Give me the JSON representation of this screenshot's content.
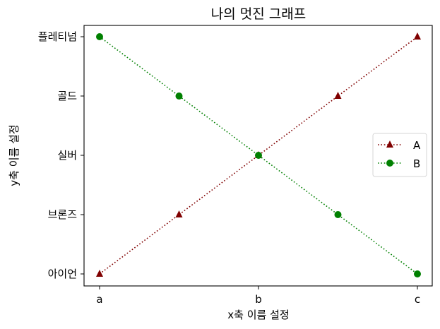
{
  "chart_data": {
    "type": "line",
    "title": "나의 멋진 그래프",
    "xlabel": "x축 이름 설정",
    "ylabel": "y축 이름 설정",
    "x_ticks": [
      {
        "label": "a",
        "value": 0
      },
      {
        "label": "b",
        "value": 1
      },
      {
        "label": "c",
        "value": 2
      }
    ],
    "y_ticks": [
      {
        "label": "아이언",
        "value": 0
      },
      {
        "label": "브론즈",
        "value": 1
      },
      {
        "label": "실버",
        "value": 2
      },
      {
        "label": "골드",
        "value": 3
      },
      {
        "label": "플레티넘",
        "value": 4
      }
    ],
    "x": [
      0,
      0.5,
      1,
      1.5,
      2
    ],
    "series": [
      {
        "name": "A",
        "values": [
          0,
          1,
          2,
          3,
          4
        ],
        "color": "#800000",
        "marker": "triangle",
        "linestyle": "dotted"
      },
      {
        "name": "B",
        "values": [
          4,
          3,
          2,
          1,
          0
        ],
        "color": "#008000",
        "marker": "circle",
        "linestyle": "dotted"
      }
    ],
    "xlim": [
      -0.1,
      2.1
    ],
    "ylim": [
      -0.2,
      4.2
    ],
    "grid": false,
    "legend_position": "center right"
  }
}
